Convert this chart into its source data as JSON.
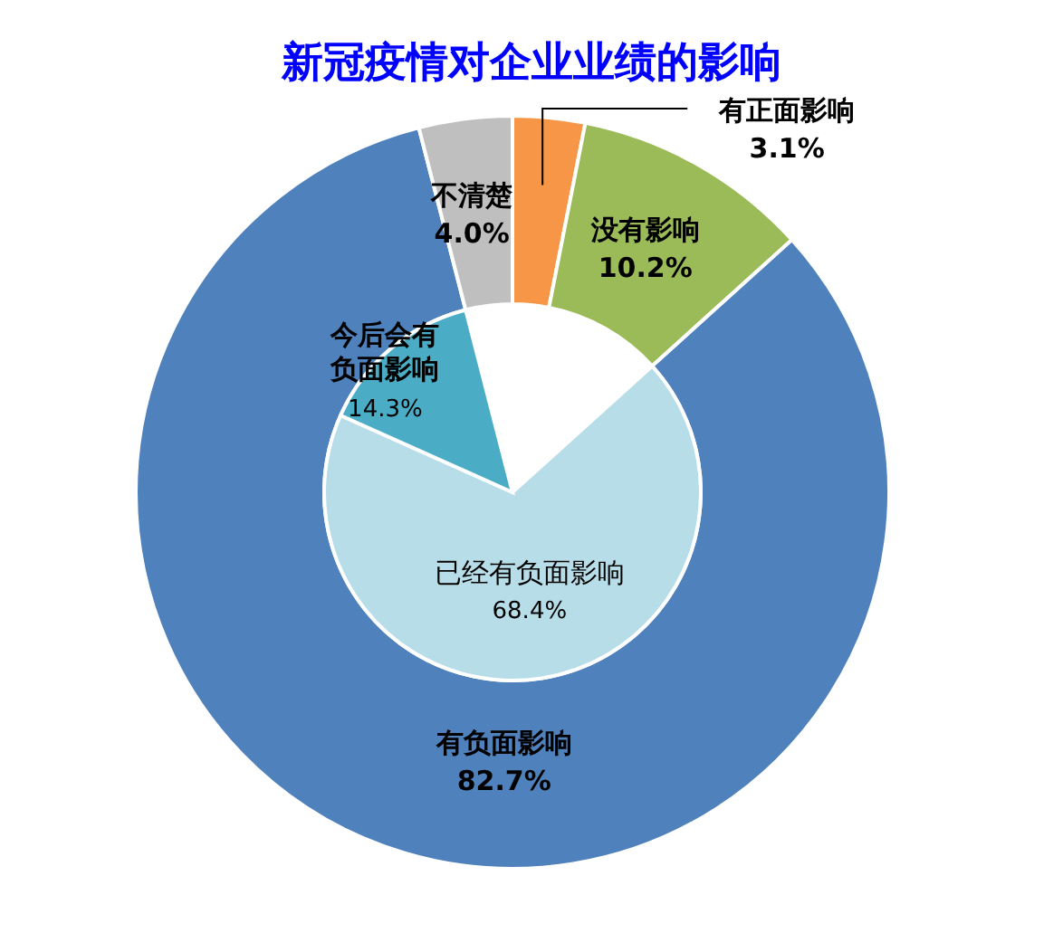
{
  "chart_data": [
    {
      "type": "donut",
      "title": "新冠疫情对企业业绩的影响",
      "categories": [
        "有正面影响",
        "没有影响",
        "有负面影响",
        "不清楚"
      ],
      "values": [
        3.1,
        10.2,
        82.7,
        4.0
      ],
      "value_labels": [
        "3.1%",
        "10.2%",
        "82.7%",
        "4.0%"
      ],
      "colors": [
        "#f79646",
        "#9bbb59",
        "#4f81bd",
        "#bfbfbf"
      ],
      "data_labels": true
    },
    {
      "type": "pie",
      "categories": [
        "已经有负面影响",
        "今后会有负面影响"
      ],
      "values": [
        68.4,
        14.3
      ],
      "value_labels": [
        "68.4%",
        "14.3%"
      ],
      "colors": [
        "#b7dde8",
        "#4bacc6"
      ],
      "data_labels": true
    }
  ]
}
